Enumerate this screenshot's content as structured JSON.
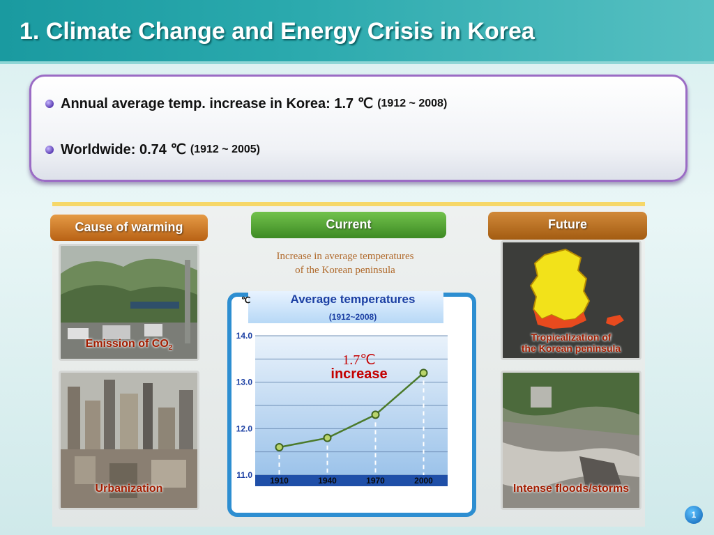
{
  "slide_title": "1. Climate Change and Energy Crisis in Korea",
  "bullets": [
    {
      "main": "Annual average temp. increase in Korea: 1.7 ℃",
      "period": "(1912 ~ 2008)"
    },
    {
      "main": "Worldwide: 0.74 ℃",
      "period": "(1912 ~ 2005)"
    }
  ],
  "columns": {
    "cause": {
      "label": "Cause of warming",
      "items": [
        {
          "caption": "Emission of CO",
          "caption_sub": "2",
          "icon": "city-traffic-photo"
        },
        {
          "caption": "Urbanization",
          "icon": "city-skyline-photo"
        }
      ]
    },
    "current": {
      "label": "Current",
      "description_line1": "Increase in average temperatures",
      "description_line2": "of the Korean peninsula"
    },
    "future": {
      "label": "Future",
      "items": [
        {
          "caption_line1": "Tropicalization of",
          "caption_line2": "the Korean peninsula",
          "icon": "korea-map-photo"
        },
        {
          "caption": "Intense floods/storms",
          "icon": "flood-damage-photo"
        }
      ]
    }
  },
  "chart_data": {
    "type": "line",
    "title": "Average temperatures",
    "subtitle": "(1912~2008)",
    "ylabel": "℃",
    "x": [
      1910,
      1940,
      1970,
      2000
    ],
    "series": [
      {
        "values": [
          11.6,
          11.8,
          12.3,
          13.2
        ]
      }
    ],
    "ylim": [
      11.0,
      14.0
    ],
    "yticks": [
      "11.0",
      "12.0",
      "13.0",
      "14.0"
    ],
    "xticks": [
      "1910",
      "1940",
      "1970",
      "2000"
    ],
    "annotation_value": "1.7℃",
    "annotation_word": "increase",
    "grid": true
  },
  "page_number": "1",
  "colors": {
    "header": "#1a9aa0",
    "chart_line": "#4b7a2a",
    "accent_red": "#c40000"
  }
}
